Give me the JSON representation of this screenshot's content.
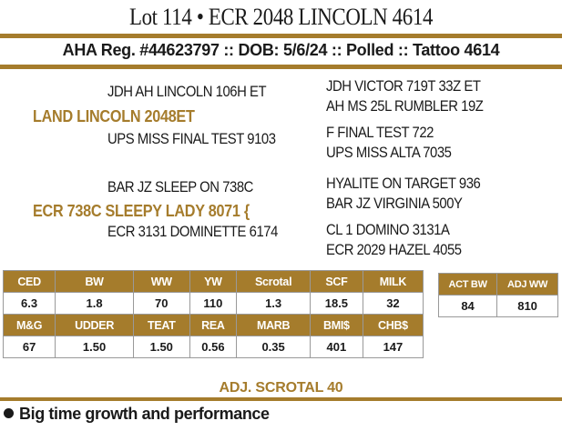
{
  "lot": {
    "title": "Lot 114 • ECR 2048 LINCOLN 4614"
  },
  "registration": {
    "line": "AHA Reg. #44623797 :: DOB: 5/6/24 :: Polled :: Tattoo 4614"
  },
  "pedigree": {
    "sire": "LAND LINCOLN 2048ET",
    "sire_sire": "JDH AH LINCOLN 106H ET",
    "sire_dam": "UPS MISS FINAL TEST 9103",
    "sire_sire_sire": "JDH VICTOR 719T 33Z ET",
    "sire_sire_dam": "AH MS 25L RUMBLER 19Z",
    "sire_dam_sire": "F FINAL TEST 722",
    "sire_dam_dam": "UPS MISS ALTA 7035",
    "dam": "ECR 738C SLEEPY LADY 8071 {",
    "dam_sire": "BAR JZ SLEEP ON 738C",
    "dam_dam": "ECR 3131 DOMINETTE 6174",
    "dam_sire_sire": "HYALITE ON TARGET 936",
    "dam_sire_dam": "BAR JZ VIRGINIA 500Y",
    "dam_dam_sire": "CL 1 DOMINO 3131A",
    "dam_dam_dam": "ECR 2029 HAZEL 4055"
  },
  "epds": {
    "row1": {
      "headers": [
        "CED",
        "BW",
        "WW",
        "YW",
        "Scrotal",
        "SCF",
        "MILK"
      ],
      "values": [
        "6.3",
        "1.8",
        "70",
        "110",
        "1.3",
        "18.5",
        "32"
      ]
    },
    "row2": {
      "headers": [
        "M&G",
        "UDDER",
        "TEAT",
        "REA",
        "MARB",
        "BMI$",
        "CHB$"
      ],
      "values": [
        "67",
        "1.50",
        "1.50",
        "0.56",
        "0.35",
        "401",
        "147"
      ]
    }
  },
  "actuals": {
    "headers": [
      "ACT BW",
      "ADJ WW"
    ],
    "values": [
      "84",
      "810"
    ]
  },
  "adj_scrotal": "ADJ. SCROTAL 40",
  "notes": [
    "Big time growth and performance"
  ],
  "colors": {
    "accent": "#a57c2c",
    "text": "#1a1a1a"
  }
}
